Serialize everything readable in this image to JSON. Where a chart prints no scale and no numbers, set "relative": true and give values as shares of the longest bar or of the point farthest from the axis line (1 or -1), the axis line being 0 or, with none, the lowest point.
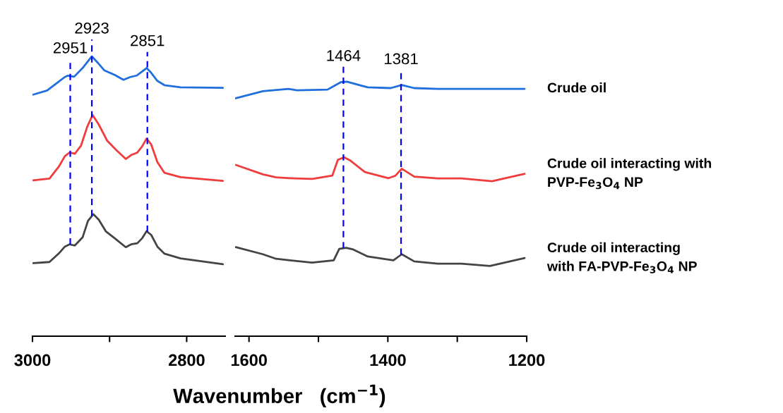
{
  "chart_data": [
    {
      "type": "line",
      "relative": true,
      "xlabel": "Wavenumber   (cm$^{−1}$)",
      "xlim": [
        3000,
        2750
      ],
      "xticks": [
        3000,
        {
          "value": 2900,
          "label": null
        },
        2800
      ],
      "tick_labels": "x",
      "grid": false,
      "legend": false,
      "marker": "none",
      "line_style": "solid",
      "ref_lines": [
        {
          "axis": "x",
          "value": 2951,
          "label": "2951",
          "color": "#0000ff",
          "line_style": "dashed"
        },
        {
          "axis": "x",
          "value": 2923,
          "label": "2923",
          "color": "#0000ff",
          "line_style": "dashed"
        },
        {
          "axis": "x",
          "value": 2851,
          "label": "2851",
          "color": "#0000ff",
          "line_style": "dashed"
        }
      ],
      "series": [
        {
          "color": "#1f6fdc",
          "x": [
            2999,
            2981,
            2969,
            2958,
            2954,
            2946,
            2935,
            2923,
            2916,
            2907,
            2893,
            2882,
            2873,
            2865,
            2858,
            2852,
            2846,
            2838,
            2829,
            2808,
            2753
          ],
          "values": [
            0.863,
            0.878,
            0.903,
            0.926,
            0.931,
            0.927,
            0.958,
            1.0,
            0.979,
            0.95,
            0.933,
            0.916,
            0.926,
            0.931,
            0.945,
            0.958,
            0.941,
            0.912,
            0.897,
            0.889,
            0.887
          ]
        },
        {
          "color": "#f03c3c",
          "x": [
            2999,
            2978,
            2966,
            2958,
            2952,
            2945,
            2937,
            2929,
            2922,
            2914,
            2903,
            2891,
            2879,
            2872,
            2864,
            2858,
            2852,
            2846,
            2838,
            2829,
            2808,
            2753
          ],
          "values": [
            0.557,
            0.563,
            0.605,
            0.643,
            0.656,
            0.652,
            0.681,
            0.748,
            0.79,
            0.756,
            0.698,
            0.664,
            0.633,
            0.647,
            0.656,
            0.677,
            0.706,
            0.685,
            0.622,
            0.584,
            0.568,
            0.555
          ]
        },
        {
          "color": "#444444",
          "x": [
            2999,
            2978,
            2966,
            2958,
            2952,
            2945,
            2935,
            2928,
            2921,
            2914,
            2905,
            2893,
            2879,
            2872,
            2864,
            2858,
            2852,
            2846,
            2838,
            2829,
            2808,
            2753
          ],
          "values": [
            0.261,
            0.265,
            0.295,
            0.32,
            0.328,
            0.324,
            0.353,
            0.412,
            0.436,
            0.416,
            0.375,
            0.349,
            0.318,
            0.328,
            0.332,
            0.349,
            0.375,
            0.362,
            0.32,
            0.295,
            0.278,
            0.257
          ]
        }
      ]
    },
    {
      "type": "line",
      "relative": true,
      "xlim": [
        1620,
        1200
      ],
      "xticks": [
        1600,
        {
          "value": 1500,
          "label": null
        },
        1400,
        {
          "value": 1300,
          "label": null
        },
        1200
      ],
      "tick_labels": "x",
      "grid": false,
      "legend": false,
      "marker": "none",
      "line_style": "solid",
      "ref_lines": [
        {
          "axis": "x",
          "value": 1464,
          "label": "1464",
          "color": "#0000ff",
          "line_style": "dashed"
        },
        {
          "axis": "x",
          "value": 1381,
          "label": "1381",
          "color": "#0000ff",
          "line_style": "dashed"
        }
      ],
      "series": [
        {
          "name": "Crude oil",
          "color": "#1f6fdc",
          "x": [
            1619,
            1580,
            1543,
            1531,
            1487,
            1477,
            1468,
            1459,
            1429,
            1396,
            1380,
            1362,
            1328,
            1203
          ],
          "values": [
            0.935,
            0.963,
            0.972,
            0.966,
            0.969,
            0.984,
            0.998,
            1.0,
            0.978,
            0.975,
            0.987,
            0.975,
            0.972,
            0.972
          ]
        },
        {
          "name": "Crude oil interacting with\nPVP-Fe$_{3}$O$_{4}$ NP",
          "color": "#f03c3c",
          "x": [
            1619,
            1580,
            1561,
            1541,
            1509,
            1480,
            1472,
            1463,
            1455,
            1433,
            1399,
            1389,
            1380,
            1362,
            1328,
            1294,
            1250,
            1203
          ],
          "values": [
            0.673,
            0.636,
            0.624,
            0.621,
            0.618,
            0.631,
            0.693,
            0.703,
            0.692,
            0.645,
            0.621,
            0.631,
            0.658,
            0.627,
            0.62,
            0.62,
            0.609,
            0.638
          ]
        },
        {
          "name": "Crude oil interacting\nwith FA-PVP-Fe$_{3}$O$_{4}$ NP",
          "color": "#444444",
          "x": [
            1619,
            1580,
            1561,
            1541,
            1509,
            1478,
            1470,
            1460,
            1450,
            1429,
            1392,
            1380,
            1362,
            1328,
            1294,
            1253,
            1203
          ],
          "values": [
            0.35,
            0.322,
            0.304,
            0.298,
            0.289,
            0.298,
            0.343,
            0.347,
            0.341,
            0.313,
            0.298,
            0.322,
            0.294,
            0.285,
            0.285,
            0.276,
            0.307
          ]
        }
      ]
    }
  ]
}
